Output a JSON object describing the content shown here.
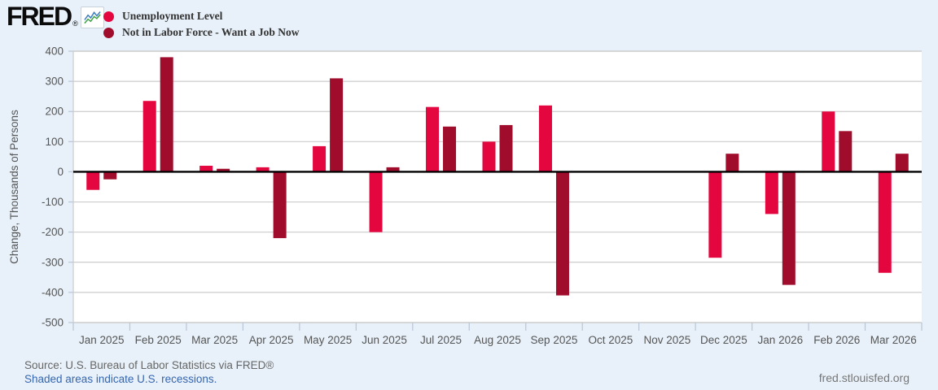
{
  "colors": {
    "background": "#e8f1f9",
    "plot_background": "#ffffff",
    "grid": "#cccccc",
    "zero_line": "#000000",
    "axis_text": "#555555",
    "tick_mark": "#b9c6d6"
  },
  "header": {
    "logo_text": "FRED",
    "registered_mark": "®",
    "logo_icon": "line-chart-icon"
  },
  "legend": [
    {
      "label": "Unemployment Level",
      "color": "#e3063f"
    },
    {
      "label": "Not in Labor Force - Want a Job Now",
      "color": "#a00d2c"
    }
  ],
  "chart_data": {
    "type": "bar",
    "title": "",
    "xlabel": "",
    "ylabel": "Change, Thousands of Persons",
    "ylim": [
      -500,
      400
    ],
    "yticks": [
      400,
      300,
      200,
      100,
      0,
      -100,
      -200,
      -300,
      -400,
      -500
    ],
    "grid": true,
    "legend_position": "top-left",
    "categories": [
      "Jan 2025",
      "Feb 2025",
      "Mar 2025",
      "Apr 2025",
      "May 2025",
      "Jun 2025",
      "Jul 2025",
      "Aug 2025",
      "Sep 2025",
      "Oct 2025",
      "Nov 2025",
      "Dec 2025",
      "Jan 2026",
      "Feb 2026",
      "Mar 2026"
    ],
    "series": [
      {
        "name": "Unemployment Level",
        "color": "#e3063f",
        "values": [
          -60,
          235,
          20,
          15,
          85,
          -200,
          215,
          100,
          220,
          null,
          null,
          -285,
          -140,
          200,
          -335
        ]
      },
      {
        "name": "Not in Labor Force - Want a Job Now",
        "color": "#a00d2c",
        "values": [
          -25,
          380,
          10,
          -220,
          310,
          15,
          150,
          155,
          -410,
          null,
          null,
          60,
          -375,
          135,
          60
        ]
      }
    ]
  },
  "footer": {
    "source": "Source: U.S. Bureau of Labor Statistics via FRED®",
    "recession_note": "Shaded areas indicate U.S. recessions.",
    "site": "fred.stlouisfed.org"
  }
}
